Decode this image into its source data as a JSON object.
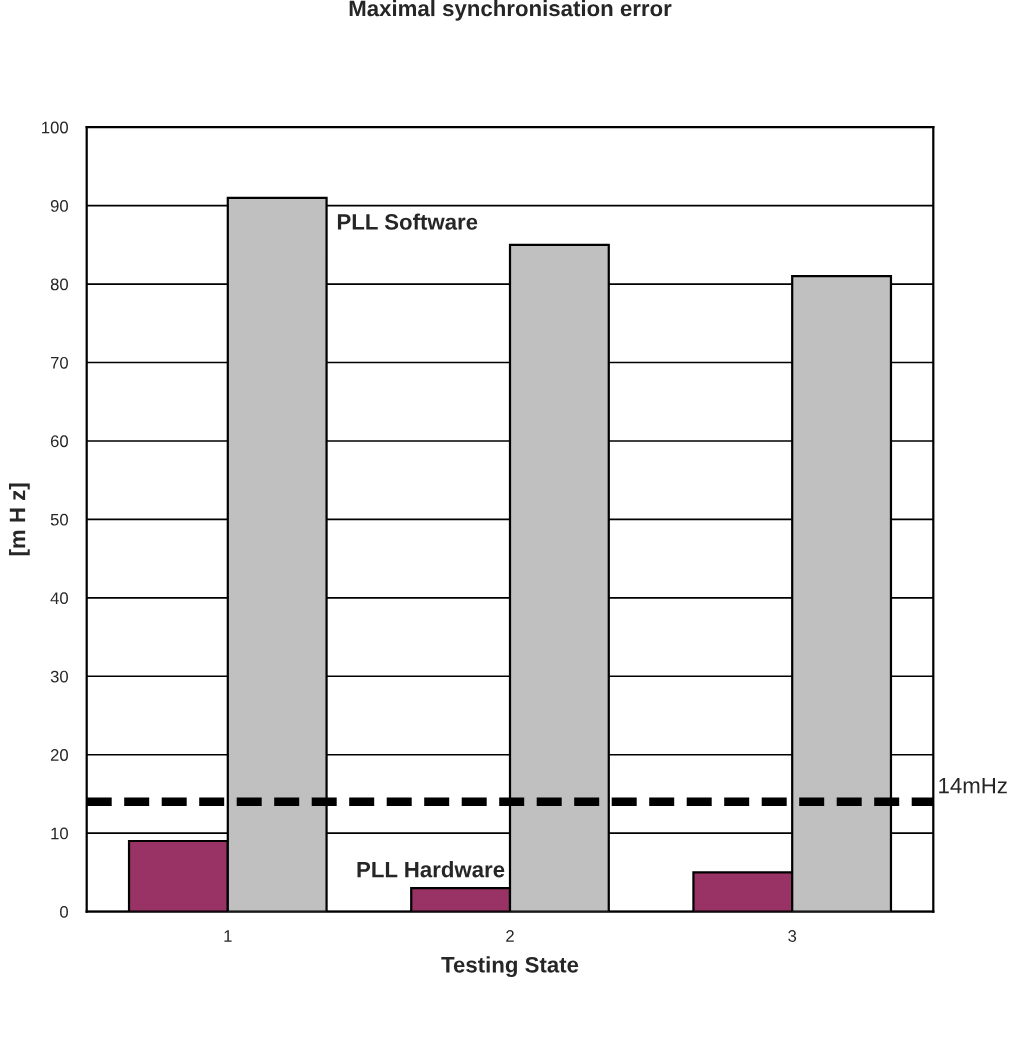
{
  "chart_data": {
    "type": "bar",
    "title": "Maximal synchronisation error",
    "xlabel": "Testing State",
    "ylabel": "[m H z]",
    "categories": [
      "1",
      "2",
      "3"
    ],
    "series": [
      {
        "name": "PLL Hardware",
        "color": "#993366",
        "values": [
          9,
          3,
          5
        ]
      },
      {
        "name": "PLL Software",
        "color": "#c0c0c0",
        "values": [
          91,
          85,
          81
        ]
      }
    ],
    "ylim": [
      0,
      100
    ],
    "yticks": [
      0,
      10,
      20,
      30,
      40,
      50,
      60,
      70,
      80,
      90,
      100
    ],
    "grid": "y",
    "ref_lines": [
      {
        "axis": "y",
        "value": 14,
        "label": "14mHz",
        "color": "#000000",
        "line_style": "dashed"
      }
    ]
  }
}
